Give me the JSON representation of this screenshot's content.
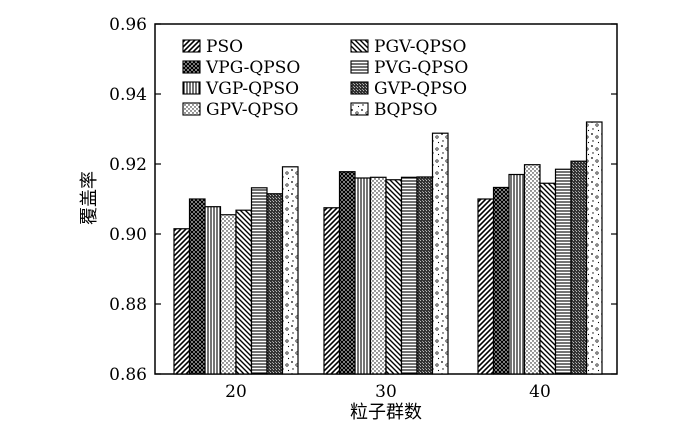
{
  "chart_data": {
    "type": "bar",
    "title": "",
    "xlabel": "粒子群数",
    "ylabel": "覆盖率",
    "categories": [
      "20",
      "30",
      "40"
    ],
    "ylim": [
      0.86,
      0.96
    ],
    "yticks": [
      "0.86",
      "0.88",
      "0.90",
      "0.92",
      "0.94",
      "0.96"
    ],
    "legend_position": "top-left, inside plot, two columns",
    "series": [
      {
        "name": "PSO",
        "pattern": "diag-back",
        "values": [
          0.9015,
          0.9075,
          0.91
        ]
      },
      {
        "name": "VPG-QPSO",
        "pattern": "crosshatch",
        "values": [
          0.91,
          0.9178,
          0.9133
        ]
      },
      {
        "name": "VGP-QPSO",
        "pattern": "vlines",
        "values": [
          0.9078,
          0.916,
          0.917
        ]
      },
      {
        "name": "GPV-QPSO",
        "pattern": "dots",
        "values": [
          0.9055,
          0.9162,
          0.9198
        ]
      },
      {
        "name": "PGV-QPSO",
        "pattern": "diag-fwd",
        "values": [
          0.9068,
          0.9155,
          0.9145
        ]
      },
      {
        "name": "PVG-QPSO",
        "pattern": "hlines",
        "values": [
          0.9132,
          0.9162,
          0.9185
        ]
      },
      {
        "name": "GVP-QPSO",
        "pattern": "dense",
        "values": [
          0.9115,
          0.9163,
          0.9208
        ]
      },
      {
        "name": "BQPSO",
        "pattern": "speckle",
        "values": [
          0.9192,
          0.9288,
          0.932
        ]
      }
    ]
  }
}
